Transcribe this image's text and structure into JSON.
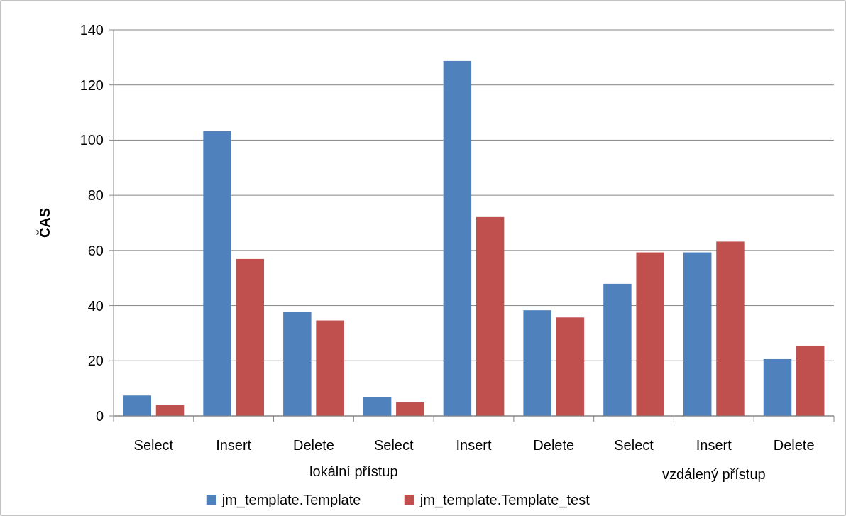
{
  "chart_data": {
    "type": "bar",
    "ylabel": "ČAS",
    "categories": [
      "Select",
      "Insert",
      "Delete",
      "Select",
      "Insert",
      "Delete",
      "Select",
      "Insert",
      "Delete"
    ],
    "series": [
      {
        "name": "jm_template.Template",
        "color": "#4f81bd",
        "values": [
          7.4,
          103.3,
          37.6,
          6.7,
          128.7,
          38.3,
          47.9,
          59.3,
          20.6
        ]
      },
      {
        "name": "jm_template.Template_test",
        "color": "#c0504d",
        "values": [
          3.9,
          56.9,
          34.6,
          4.9,
          72.1,
          35.7,
          59.3,
          63.2,
          25.3
        ]
      }
    ],
    "annotations": [
      "lokální přístup",
      "vzdálený přístup"
    ],
    "ylim": [
      0,
      140
    ],
    "yticks": [
      0,
      20,
      40,
      60,
      80,
      100,
      120,
      140
    ],
    "grid": "y",
    "legend": "bottom"
  }
}
